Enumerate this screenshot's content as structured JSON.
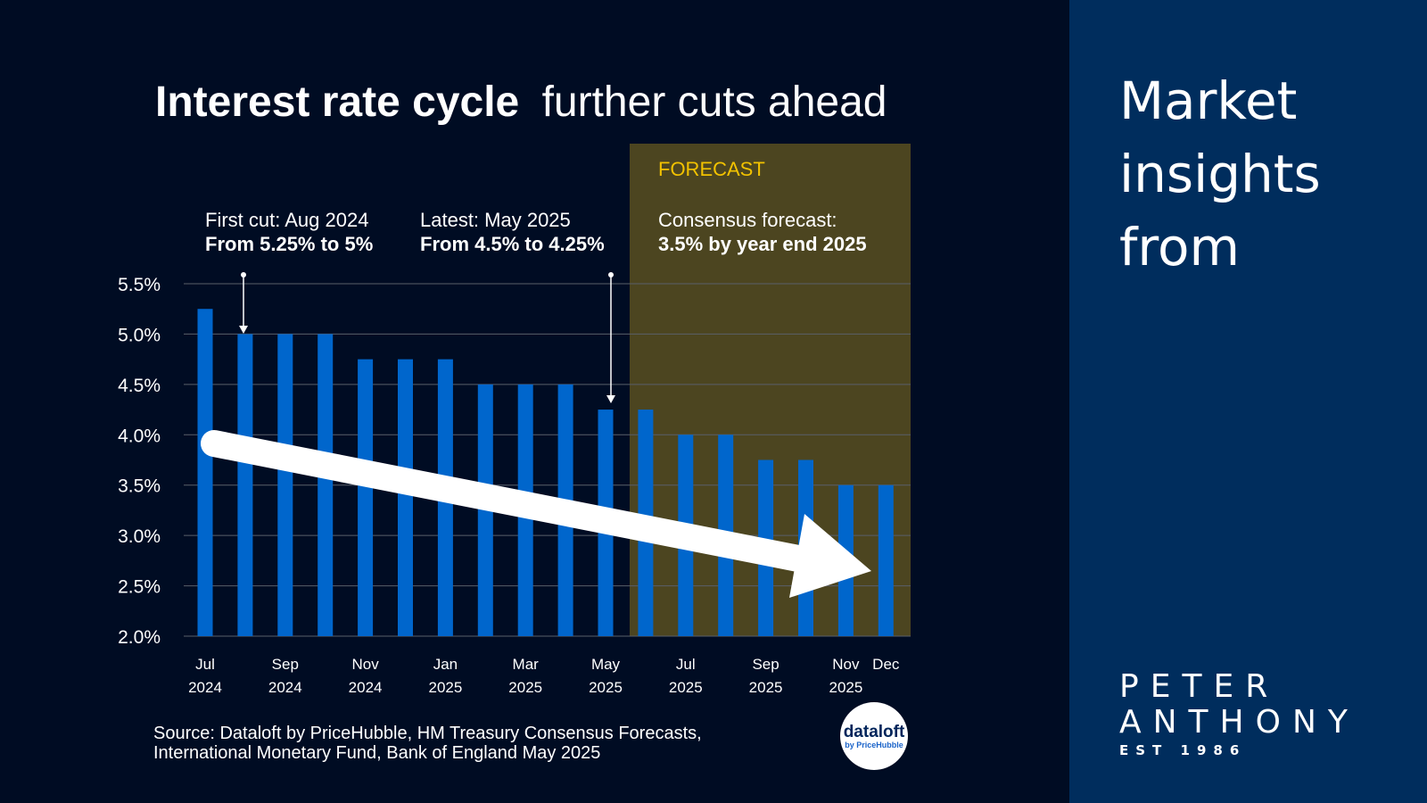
{
  "title": {
    "bold": "Interest rate cycle",
    "regular": "further cuts ahead"
  },
  "forecast_label": "FORECAST",
  "annotations": [
    {
      "line1": "First cut: Aug 2024",
      "line2": "From 5.25% to 5%"
    },
    {
      "line1": "Latest: May 2025",
      "line2": "From 4.5% to 4.25%"
    },
    {
      "line1": "Consensus forecast:",
      "line2": "3.5% by year end 2025"
    }
  ],
  "source": {
    "line1": "Source: Dataloft by PriceHubble, HM Treasury Consensus Forecasts,",
    "line2": "International Monetary Fund, Bank of England May 2025"
  },
  "badge": {
    "name": "dataloft",
    "sub": "by PriceHubble"
  },
  "side_panel": {
    "heading_lines": [
      "Market",
      "insights",
      "from"
    ],
    "logo": {
      "line1": "PETER",
      "line2": "ANTHONY",
      "line3": "EST 1986"
    }
  },
  "colors": {
    "background": "#000c23",
    "side_panel": "#002d5d",
    "bar": "#0066cc",
    "forecast_band": "#4c4520",
    "forecast_text": "#f2c200",
    "trend_arrow": "#ffffff"
  },
  "chart_data": {
    "type": "bar",
    "title": "Interest rate cycle further cuts ahead",
    "categories": [
      "Jul 2024",
      "Aug 2024",
      "Sep 2024",
      "Oct 2024",
      "Nov 2024",
      "Dec 2024",
      "Jan 2025",
      "Feb 2025",
      "Mar 2025",
      "Apr 2025",
      "May 2025",
      "Jun 2025",
      "Jul 2025",
      "Aug 2025",
      "Sep 2025",
      "Oct 2025",
      "Nov 2025",
      "Dec 2025"
    ],
    "values": [
      5.25,
      5.0,
      5.0,
      5.0,
      4.75,
      4.75,
      4.75,
      4.5,
      4.5,
      4.5,
      4.25,
      4.25,
      4.0,
      4.0,
      3.75,
      3.75,
      3.5,
      3.5
    ],
    "forecast_from_index": 11,
    "ylim": [
      2.0,
      5.5
    ],
    "yticks": [
      "5.5%",
      "5.0%",
      "4.5%",
      "4.0%",
      "3.5%",
      "3.0%",
      "2.5%",
      "2.0%"
    ],
    "xtick_labels": [
      {
        "index": 0,
        "month": "Jul",
        "year": "2024"
      },
      {
        "index": 2,
        "month": "Sep",
        "year": "2024"
      },
      {
        "index": 4,
        "month": "Nov",
        "year": "2024"
      },
      {
        "index": 6,
        "month": "Jan",
        "year": "2025"
      },
      {
        "index": 8,
        "month": "Mar",
        "year": "2025"
      },
      {
        "index": 10,
        "month": "May",
        "year": "2025"
      },
      {
        "index": 12,
        "month": "Jul",
        "year": "2025"
      },
      {
        "index": 14,
        "month": "Sep",
        "year": "2025"
      },
      {
        "index": 16,
        "month": "Nov",
        "year": "2025"
      },
      {
        "index": 17,
        "month": "Dec",
        "year": ""
      }
    ],
    "grid": true,
    "legend": "none"
  }
}
